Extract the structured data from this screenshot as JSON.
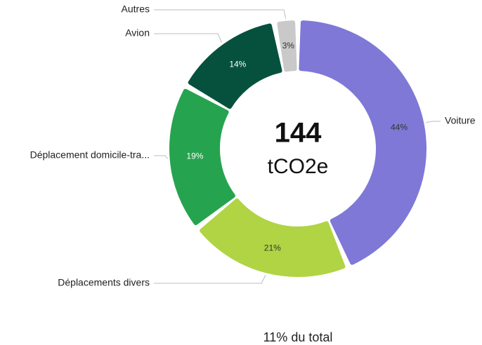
{
  "chart_data": {
    "type": "donut",
    "categories": [
      "Voiture",
      "Déplacements divers",
      "Déplacement domicile-tra...",
      "Avion",
      "Autres"
    ],
    "values": [
      44,
      21,
      19,
      14,
      3
    ],
    "value_labels": [
      "44%",
      "21%",
      "19%",
      "14%",
      "3%"
    ],
    "colors": [
      "#7f78d6",
      "#b0d443",
      "#26a34f",
      "#06513d",
      "#c9c9c9"
    ],
    "center_value": "144",
    "center_unit": "tCO2e",
    "footer": "11% du total"
  }
}
